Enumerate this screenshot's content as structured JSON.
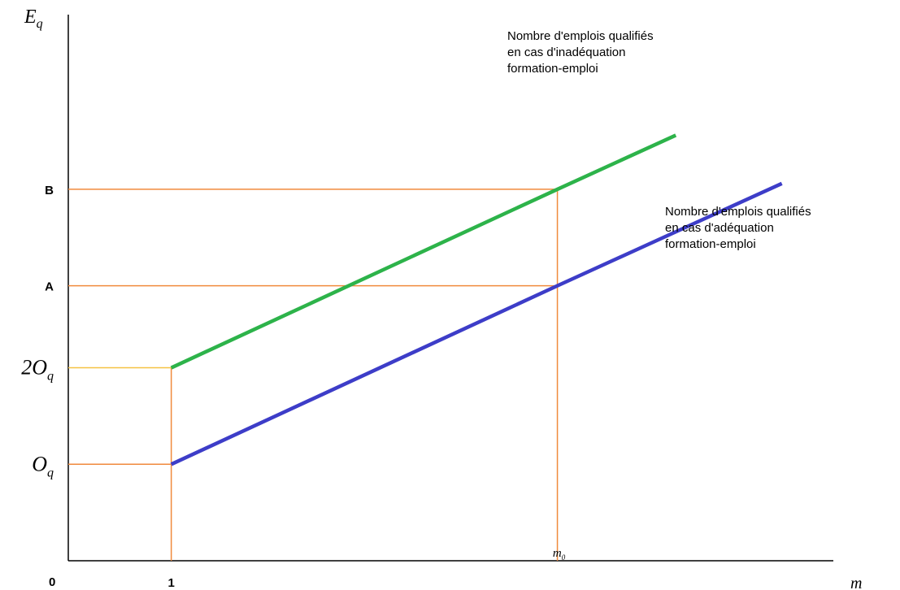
{
  "chart_data": {
    "type": "line",
    "title": "",
    "xlabel": "m",
    "ylabel": "E",
    "ylabel_subscript": "q",
    "origin_label": "0",
    "x_ticks": [
      {
        "value": 1,
        "label": "1",
        "style": "bold"
      },
      {
        "value": 4.75,
        "label": "m",
        "subscript": "0",
        "style": "math"
      }
    ],
    "y_ticks": [
      {
        "value": 1,
        "label": "O",
        "subscript": "q",
        "style": "math"
      },
      {
        "value": 2,
        "label": "2O",
        "subscript": "q",
        "style": "math"
      },
      {
        "value": 2.85,
        "label": "A",
        "style": "bold"
      },
      {
        "value": 3.85,
        "label": "B",
        "style": "bold"
      }
    ],
    "xlim": [
      0,
      7.43
    ],
    "ylim": [
      0,
      5.66
    ],
    "series": [
      {
        "name": "Nombre d'emplois qualifiés en cas d'inadéquation formation-emploi",
        "lines": [
          "Nombre d'emplois qualifiés",
          "en cas d'inadéquation",
          "formation-emploi"
        ],
        "color": "#2db34a",
        "points": [
          [
            1,
            2
          ],
          [
            4.75,
            3.85
          ],
          [
            5.9,
            4.41
          ]
        ]
      },
      {
        "name": "Nombre d'emplois qualifiés en cas d'adéquation formation-emploi",
        "lines": [
          "Nombre d'emplois qualifiés",
          "en cas d'adéquation",
          "formation-emploi"
        ],
        "color": "#3d3dc8",
        "points": [
          [
            1,
            1
          ],
          [
            4.75,
            2.85
          ],
          [
            6.93,
            3.91
          ]
        ]
      }
    ],
    "guides": [
      {
        "from": [
          1,
          0
        ],
        "to": [
          1,
          2
        ],
        "color": "#f08a3c"
      },
      {
        "from": [
          0,
          1
        ],
        "to": [
          1,
          1
        ],
        "color": "#f08a3c"
      },
      {
        "from": [
          0,
          2
        ],
        "to": [
          1,
          2
        ],
        "color": "#f5c242"
      },
      {
        "from": [
          4.75,
          0
        ],
        "to": [
          4.75,
          3.85
        ],
        "color": "#f08a3c"
      },
      {
        "from": [
          0,
          2.85
        ],
        "to": [
          4.75,
          2.85
        ],
        "color": "#f08a3c"
      },
      {
        "from": [
          0,
          3.85
        ],
        "to": [
          4.75,
          3.85
        ],
        "color": "#f08a3c"
      }
    ],
    "axis_color": "#000000",
    "grid": false,
    "legend": "none"
  }
}
